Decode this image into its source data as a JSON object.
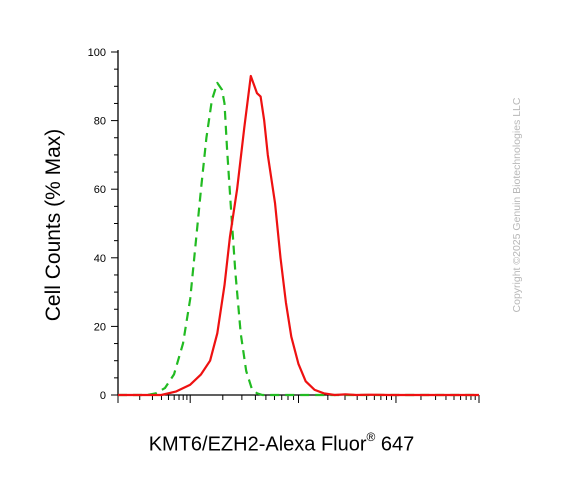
{
  "chart_data": {
    "type": "line",
    "title": "",
    "xlabel_main": "KMT6/EZH2-Alexa Fluor",
    "xlabel_mark": "®",
    "xlabel_tail": " 647",
    "ylabel": "Cell Counts (% Max)",
    "xscale": "log (biexponential flow cytometry axis)",
    "xlim": [
      0,
      10
    ],
    "ylim": [
      0,
      100
    ],
    "y_ticks": [
      "0",
      "20",
      "40",
      "60",
      "80",
      "100"
    ],
    "grid": false,
    "legend": "none",
    "series": [
      {
        "color": "#22bb22",
        "line_style": "dashed",
        "x": [
          0.0,
          0.5,
          0.8,
          1.05,
          1.3,
          1.55,
          1.8,
          2.0,
          2.15,
          2.3,
          2.45,
          2.6,
          2.75,
          2.88,
          2.95,
          3.02,
          3.12,
          3.25,
          3.4,
          3.55,
          3.7,
          3.85,
          4.0,
          4.2,
          4.5,
          5.0,
          6.0,
          8.0,
          10.0
        ],
        "y": [
          0,
          0,
          0,
          0.5,
          2,
          6,
          15,
          28,
          44,
          60,
          75,
          86,
          91,
          89,
          85,
          72,
          56,
          36,
          18,
          7,
          2,
          0.5,
          0,
          0,
          0,
          0,
          0,
          0,
          0
        ]
      },
      {
        "color": "#ee1111",
        "line_style": "solid",
        "x": [
          0.0,
          0.5,
          1.2,
          1.6,
          2.0,
          2.3,
          2.55,
          2.75,
          2.95,
          3.1,
          3.3,
          3.5,
          3.68,
          3.78,
          3.85,
          3.95,
          4.05,
          4.15,
          4.35,
          4.5,
          4.65,
          4.8,
          5.0,
          5.2,
          5.45,
          5.7,
          6.0,
          6.3,
          6.6,
          7.0,
          7.5,
          8.0,
          9.0,
          10.0
        ],
        "y": [
          0,
          0,
          0,
          1,
          3,
          6,
          10,
          18,
          32,
          46,
          60,
          78,
          93,
          90,
          88,
          87,
          80,
          70,
          56,
          40,
          27,
          17,
          9,
          4,
          1.5,
          0.5,
          0,
          0.2,
          0,
          0.1,
          0,
          0,
          0,
          0
        ]
      }
    ]
  },
  "watermark": "Copyright ©2025 Genuin Biotechnologies LLC"
}
